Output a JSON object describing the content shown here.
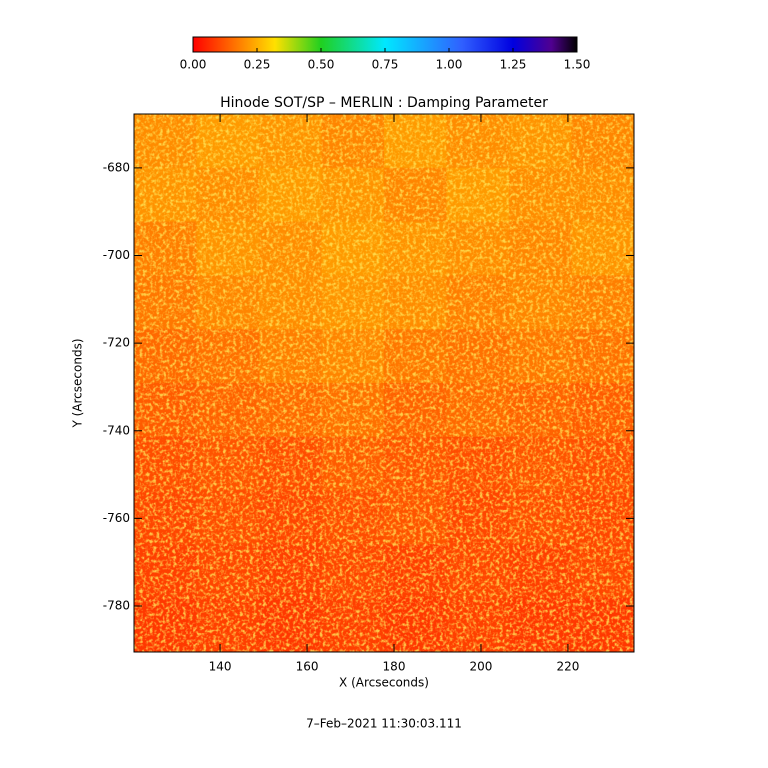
{
  "chart_data": {
    "type": "heatmap",
    "title": "Hinode SOT/SP – MERLIN : Damping Parameter",
    "xlabel": "X (Arcseconds)",
    "ylabel": "Y (Arcseconds)",
    "footer": "7–Feb–2021 11:30:03.111",
    "xlim": [
      120.2,
      235.2
    ],
    "ylim": [
      -790.5,
      -667.7
    ],
    "xticks": [
      140,
      160,
      180,
      200,
      220
    ],
    "yticks": [
      -780,
      -760,
      -740,
      -720,
      -700,
      -680
    ],
    "zlim": [
      0,
      1.5
    ],
    "zticks": [
      {
        "value": 0,
        "label": "0.00"
      },
      {
        "value": 0.25,
        "label": "0.25"
      },
      {
        "value": 0.5,
        "label": "0.50"
      },
      {
        "value": 0.75,
        "label": "0.75"
      },
      {
        "value": 1,
        "label": "1.00"
      },
      {
        "value": 1.25,
        "label": "1.25"
      },
      {
        "value": 1.5,
        "label": "1.50"
      }
    ],
    "colorscale": [
      [
        0,
        "#ff0000"
      ],
      [
        0.2,
        "#ff8c00"
      ],
      [
        0.32,
        "#ffe000"
      ],
      [
        0.5,
        "#20d020"
      ],
      [
        0.75,
        "#00e8ff"
      ],
      [
        1.05,
        "#3060ff"
      ],
      [
        1.25,
        "#0000e0"
      ],
      [
        1.4,
        "#500090"
      ],
      [
        1.5,
        "#000000"
      ]
    ],
    "z": [
      [
        0.2,
        0.22,
        0.21,
        0.19,
        0.22,
        0.2,
        0.21,
        0.19
      ],
      [
        0.21,
        0.2,
        0.22,
        0.21,
        0.19,
        0.22,
        0.2,
        0.2
      ],
      [
        0.18,
        0.21,
        0.2,
        0.22,
        0.21,
        0.2,
        0.19,
        0.21
      ],
      [
        0.17,
        0.19,
        0.2,
        0.21,
        0.2,
        0.18,
        0.19,
        0.18
      ],
      [
        0.15,
        0.16,
        0.18,
        0.19,
        0.17,
        0.16,
        0.17,
        0.16
      ],
      [
        0.13,
        0.14,
        0.15,
        0.16,
        0.14,
        0.15,
        0.14,
        0.13
      ],
      [
        0.11,
        0.12,
        0.11,
        0.13,
        0.12,
        0.11,
        0.12,
        0.11
      ],
      [
        0.1,
        0.11,
        0.1,
        0.11,
        0.12,
        0.1,
        0.11,
        0.1
      ],
      [
        0.09,
        0.1,
        0.09,
        0.1,
        0.09,
        0.1,
        0.09,
        0.1
      ],
      [
        0.08,
        0.09,
        0.08,
        0.09,
        0.08,
        0.09,
        0.08,
        0.08
      ]
    ]
  }
}
